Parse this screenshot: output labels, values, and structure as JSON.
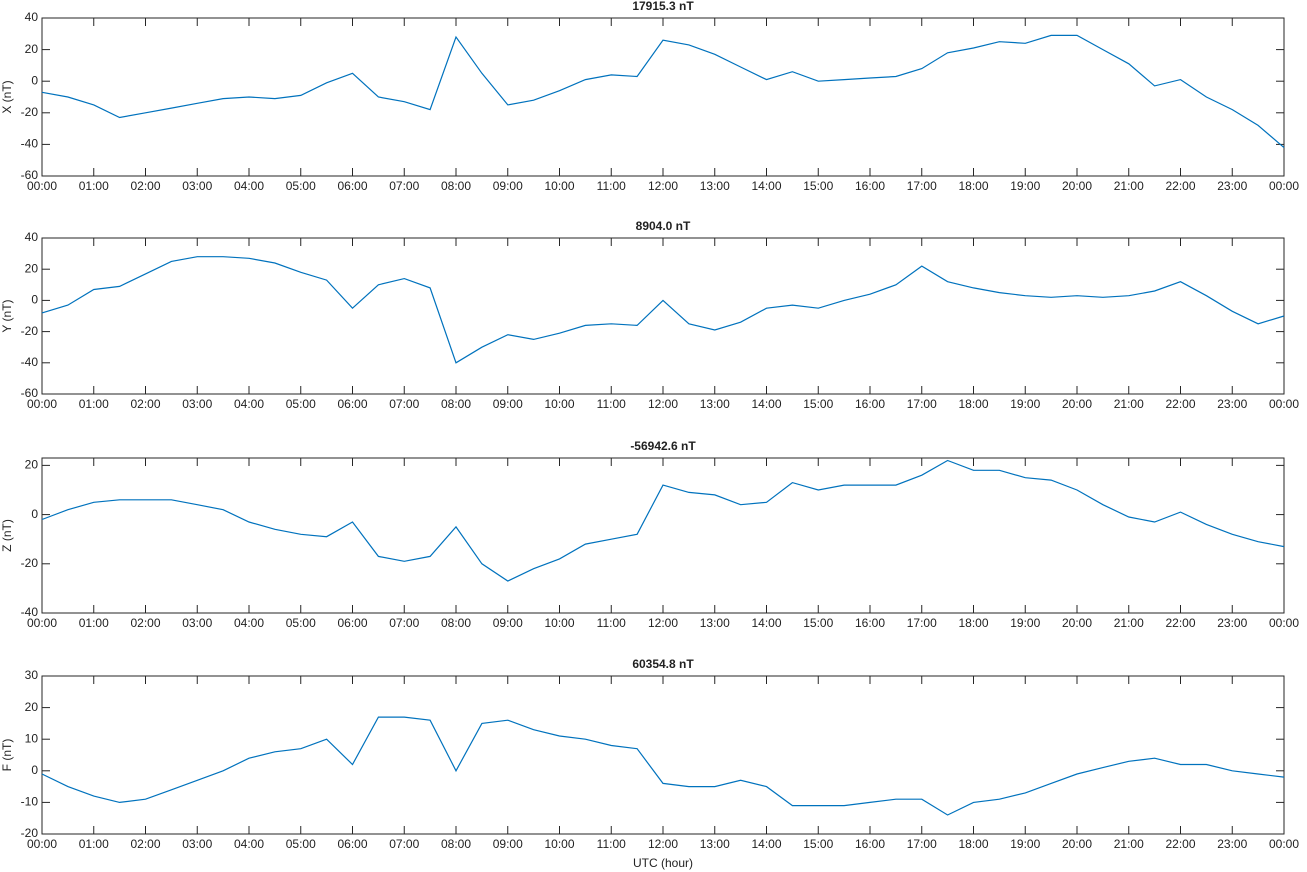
{
  "chart_data": [
    {
      "type": "line",
      "title": "17915.3 nT",
      "y_label": "X (nT)",
      "color": "#0072bd",
      "grid": false,
      "x": [
        0,
        0.5,
        1,
        1.5,
        2,
        2.5,
        3,
        3.5,
        4,
        4.5,
        5,
        5.5,
        6,
        6.5,
        7,
        7.5,
        8,
        8.5,
        9,
        9.5,
        10,
        10.5,
        11,
        11.5,
        12,
        12.5,
        13,
        13.5,
        14,
        14.5,
        15,
        15.5,
        16,
        16.5,
        17,
        17.5,
        18,
        18.5,
        19,
        19.5,
        20,
        20.5,
        21,
        21.5,
        22,
        22.5,
        23,
        23.5,
        24
      ],
      "values": [
        -7,
        -10,
        -15,
        -23,
        -20,
        -17,
        -14,
        -11,
        -10,
        -11,
        -9,
        -1,
        5,
        -10,
        -13,
        -18,
        28,
        5,
        -15,
        -12,
        -6,
        1,
        4,
        3,
        26,
        23,
        17,
        9,
        1,
        6,
        0,
        1,
        2,
        3,
        8,
        18,
        21,
        25,
        24,
        29,
        29,
        20,
        11,
        -3,
        1,
        -10,
        -18,
        -28,
        -42
      ],
      "xlim": [
        0,
        24
      ],
      "ylim": [
        -60,
        40
      ],
      "yticks": [
        -60,
        -40,
        -20,
        0,
        20,
        40
      ],
      "xticks": [
        {
          "value": 0,
          "label": "00:00"
        },
        {
          "value": 1,
          "label": "01:00"
        },
        {
          "value": 2,
          "label": "02:00"
        },
        {
          "value": 3,
          "label": "03:00"
        },
        {
          "value": 4,
          "label": "04:00"
        },
        {
          "value": 5,
          "label": "05:00"
        },
        {
          "value": 6,
          "label": "06:00"
        },
        {
          "value": 7,
          "label": "07:00"
        },
        {
          "value": 8,
          "label": "08:00"
        },
        {
          "value": 9,
          "label": "09:00"
        },
        {
          "value": 10,
          "label": "10:00"
        },
        {
          "value": 11,
          "label": "11:00"
        },
        {
          "value": 12,
          "label": "12:00"
        },
        {
          "value": 13,
          "label": "13:00"
        },
        {
          "value": 14,
          "label": "14:00"
        },
        {
          "value": 15,
          "label": "15:00"
        },
        {
          "value": 16,
          "label": "16:00"
        },
        {
          "value": 17,
          "label": "17:00"
        },
        {
          "value": 18,
          "label": "18:00"
        },
        {
          "value": 19,
          "label": "19:00"
        },
        {
          "value": 20,
          "label": "20:00"
        },
        {
          "value": 21,
          "label": "21:00"
        },
        {
          "value": 22,
          "label": "22:00"
        },
        {
          "value": 23,
          "label": "23:00"
        },
        {
          "value": 24,
          "label": "00:00"
        }
      ]
    },
    {
      "type": "line",
      "title": "8904.0 nT",
      "y_label": "Y (nT)",
      "color": "#0072bd",
      "grid": false,
      "x": [
        0,
        0.5,
        1,
        1.5,
        2,
        2.5,
        3,
        3.5,
        4,
        4.5,
        5,
        5.5,
        6,
        6.5,
        7,
        7.5,
        8,
        8.5,
        9,
        9.5,
        10,
        10.5,
        11,
        11.5,
        12,
        12.5,
        13,
        13.5,
        14,
        14.5,
        15,
        15.5,
        16,
        16.5,
        17,
        17.5,
        18,
        18.5,
        19,
        19.5,
        20,
        20.5,
        21,
        21.5,
        22,
        22.5,
        23,
        23.5,
        24
      ],
      "values": [
        -8,
        -3,
        7,
        9,
        17,
        25,
        28,
        28,
        27,
        24,
        18,
        13,
        -5,
        10,
        14,
        8,
        -40,
        -30,
        -22,
        -25,
        -21,
        -16,
        -15,
        -16,
        0,
        -15,
        -19,
        -14,
        -5,
        -3,
        -5,
        0,
        4,
        10,
        22,
        12,
        8,
        5,
        3,
        2,
        3,
        2,
        3,
        6,
        12,
        3,
        -7,
        -15,
        -10
      ],
      "xlim": [
        0,
        24
      ],
      "ylim": [
        -60,
        40
      ],
      "yticks": [
        -60,
        -40,
        -20,
        0,
        20,
        40
      ],
      "xticks": [
        {
          "value": 0,
          "label": "00:00"
        },
        {
          "value": 1,
          "label": "01:00"
        },
        {
          "value": 2,
          "label": "02:00"
        },
        {
          "value": 3,
          "label": "03:00"
        },
        {
          "value": 4,
          "label": "04:00"
        },
        {
          "value": 5,
          "label": "05:00"
        },
        {
          "value": 6,
          "label": "06:00"
        },
        {
          "value": 7,
          "label": "07:00"
        },
        {
          "value": 8,
          "label": "08:00"
        },
        {
          "value": 9,
          "label": "09:00"
        },
        {
          "value": 10,
          "label": "10:00"
        },
        {
          "value": 11,
          "label": "11:00"
        },
        {
          "value": 12,
          "label": "12:00"
        },
        {
          "value": 13,
          "label": "13:00"
        },
        {
          "value": 14,
          "label": "14:00"
        },
        {
          "value": 15,
          "label": "15:00"
        },
        {
          "value": 16,
          "label": "16:00"
        },
        {
          "value": 17,
          "label": "17:00"
        },
        {
          "value": 18,
          "label": "18:00"
        },
        {
          "value": 19,
          "label": "19:00"
        },
        {
          "value": 20,
          "label": "20:00"
        },
        {
          "value": 21,
          "label": "21:00"
        },
        {
          "value": 22,
          "label": "22:00"
        },
        {
          "value": 23,
          "label": "23:00"
        },
        {
          "value": 24,
          "label": "00:00"
        }
      ]
    },
    {
      "type": "line",
      "title": "-56942.6 nT",
      "y_label": "Z (nT)",
      "color": "#0072bd",
      "grid": false,
      "x": [
        0,
        0.5,
        1,
        1.5,
        2,
        2.5,
        3,
        3.5,
        4,
        4.5,
        5,
        5.5,
        6,
        6.5,
        7,
        7.5,
        8,
        8.5,
        9,
        9.5,
        10,
        10.5,
        11,
        11.5,
        12,
        12.5,
        13,
        13.5,
        14,
        14.5,
        15,
        15.5,
        16,
        16.5,
        17,
        17.5,
        18,
        18.5,
        19,
        19.5,
        20,
        20.5,
        21,
        21.5,
        22,
        22.5,
        23,
        23.5,
        24
      ],
      "values": [
        -2,
        2,
        5,
        6,
        6,
        6,
        4,
        2,
        -3,
        -6,
        -8,
        -9,
        -3,
        -17,
        -19,
        -17,
        -5,
        -20,
        -27,
        -22,
        -18,
        -12,
        -10,
        -8,
        12,
        9,
        8,
        4,
        5,
        13,
        10,
        12,
        12,
        12,
        16,
        22,
        18,
        18,
        15,
        14,
        10,
        4,
        -1,
        -3,
        1,
        -4,
        -8,
        -11,
        -13
      ],
      "xlim": [
        0,
        24
      ],
      "ylim": [
        -40,
        23
      ],
      "yticks": [
        -40,
        -20,
        0,
        20
      ],
      "xticks": [
        {
          "value": 0,
          "label": "00:00"
        },
        {
          "value": 1,
          "label": "01:00"
        },
        {
          "value": 2,
          "label": "02:00"
        },
        {
          "value": 3,
          "label": "03:00"
        },
        {
          "value": 4,
          "label": "04:00"
        },
        {
          "value": 5,
          "label": "05:00"
        },
        {
          "value": 6,
          "label": "06:00"
        },
        {
          "value": 7,
          "label": "07:00"
        },
        {
          "value": 8,
          "label": "08:00"
        },
        {
          "value": 9,
          "label": "09:00"
        },
        {
          "value": 10,
          "label": "10:00"
        },
        {
          "value": 11,
          "label": "11:00"
        },
        {
          "value": 12,
          "label": "12:00"
        },
        {
          "value": 13,
          "label": "13:00"
        },
        {
          "value": 14,
          "label": "14:00"
        },
        {
          "value": 15,
          "label": "15:00"
        },
        {
          "value": 16,
          "label": "16:00"
        },
        {
          "value": 17,
          "label": "17:00"
        },
        {
          "value": 18,
          "label": "18:00"
        },
        {
          "value": 19,
          "label": "19:00"
        },
        {
          "value": 20,
          "label": "20:00"
        },
        {
          "value": 21,
          "label": "21:00"
        },
        {
          "value": 22,
          "label": "22:00"
        },
        {
          "value": 23,
          "label": "23:00"
        },
        {
          "value": 24,
          "label": "00:00"
        }
      ]
    },
    {
      "type": "line",
      "title": "60354.8 nT",
      "y_label": "F (nT)",
      "x_label": "UTC (hour)",
      "color": "#0072bd",
      "grid": false,
      "x": [
        0,
        0.5,
        1,
        1.5,
        2,
        2.5,
        3,
        3.5,
        4,
        4.5,
        5,
        5.5,
        6,
        6.5,
        7,
        7.5,
        8,
        8.5,
        9,
        9.5,
        10,
        10.5,
        11,
        11.5,
        12,
        12.5,
        13,
        13.5,
        14,
        14.5,
        15,
        15.5,
        16,
        16.5,
        17,
        17.5,
        18,
        18.5,
        19,
        19.5,
        20,
        20.5,
        21,
        21.5,
        22,
        22.5,
        23,
        23.5,
        24
      ],
      "values": [
        -1,
        -5,
        -8,
        -10,
        -9,
        -6,
        -3,
        0,
        4,
        6,
        7,
        10,
        2,
        17,
        17,
        16,
        0,
        15,
        16,
        13,
        11,
        10,
        8,
        7,
        -4,
        -5,
        -5,
        -3,
        -5,
        -11,
        -11,
        -11,
        -10,
        -9,
        -9,
        -14,
        -10,
        -9,
        -7,
        -4,
        -1,
        1,
        3,
        4,
        2,
        2,
        0,
        -1,
        -2
      ],
      "xlim": [
        0,
        24
      ],
      "ylim": [
        -20,
        30
      ],
      "yticks": [
        -20,
        -10,
        0,
        10,
        20,
        30
      ],
      "xticks": [
        {
          "value": 0,
          "label": "00:00"
        },
        {
          "value": 1,
          "label": "01:00"
        },
        {
          "value": 2,
          "label": "02:00"
        },
        {
          "value": 3,
          "label": "03:00"
        },
        {
          "value": 4,
          "label": "04:00"
        },
        {
          "value": 5,
          "label": "05:00"
        },
        {
          "value": 6,
          "label": "06:00"
        },
        {
          "value": 7,
          "label": "07:00"
        },
        {
          "value": 8,
          "label": "08:00"
        },
        {
          "value": 9,
          "label": "09:00"
        },
        {
          "value": 10,
          "label": "10:00"
        },
        {
          "value": 11,
          "label": "11:00"
        },
        {
          "value": 12,
          "label": "12:00"
        },
        {
          "value": 13,
          "label": "13:00"
        },
        {
          "value": 14,
          "label": "14:00"
        },
        {
          "value": 15,
          "label": "15:00"
        },
        {
          "value": 16,
          "label": "16:00"
        },
        {
          "value": 17,
          "label": "17:00"
        },
        {
          "value": 18,
          "label": "18:00"
        },
        {
          "value": 19,
          "label": "19:00"
        },
        {
          "value": 20,
          "label": "20:00"
        },
        {
          "value": 21,
          "label": "21:00"
        },
        {
          "value": 22,
          "label": "22:00"
        },
        {
          "value": 23,
          "label": "23:00"
        },
        {
          "value": 24,
          "label": "00:00"
        }
      ]
    }
  ]
}
